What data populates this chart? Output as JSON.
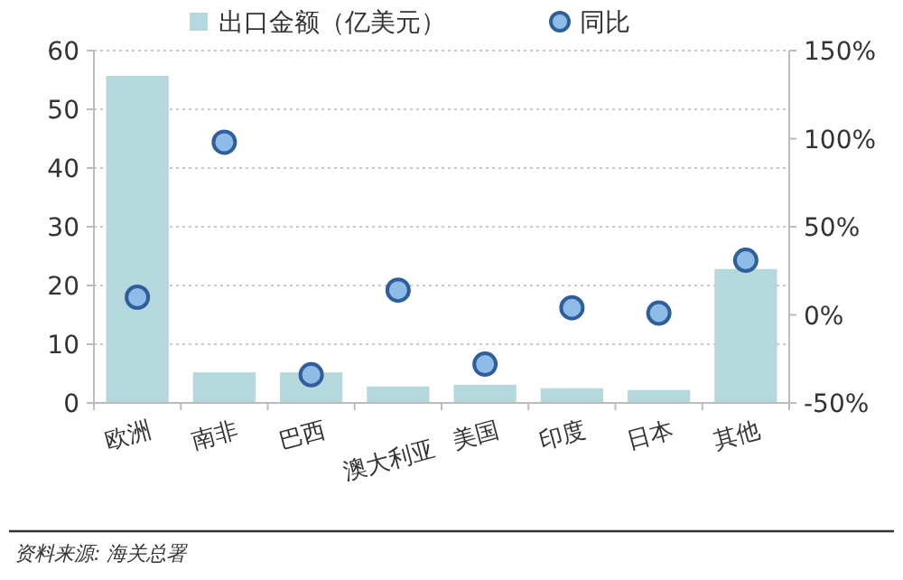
{
  "chart_data": {
    "type": "bar",
    "categories": [
      "欧洲",
      "南非",
      "巴西",
      "澳大利亚",
      "美国",
      "印度",
      "日本",
      "其他"
    ],
    "series": [
      {
        "name": "出口金额（亿美元）",
        "color": "#b4d8dc",
        "values": [
          55.7,
          5.2,
          5.2,
          2.8,
          3.1,
          2.5,
          2.2,
          22.8
        ]
      },
      {
        "name": "同比",
        "type": "scatter",
        "axis": "y2",
        "color": "#8fbbe8",
        "marker": "circle",
        "values": [
          10,
          98,
          -34,
          14,
          -28,
          4,
          1,
          31
        ]
      }
    ],
    "ylim": [
      0,
      60
    ],
    "yticks": [
      0,
      10,
      20,
      30,
      40,
      50,
      60
    ],
    "y2lim": [
      -50,
      150
    ],
    "y2ticks": [
      {
        "value": -50,
        "label": "-50%"
      },
      {
        "value": 0,
        "label": "0%"
      },
      {
        "value": 50,
        "label": "50%"
      },
      {
        "value": 100,
        "label": "100%"
      },
      {
        "value": 150,
        "label": "150%"
      }
    ],
    "grid": "y",
    "legend": "top",
    "annotations": [
      "资料来源: 海关总署"
    ]
  }
}
